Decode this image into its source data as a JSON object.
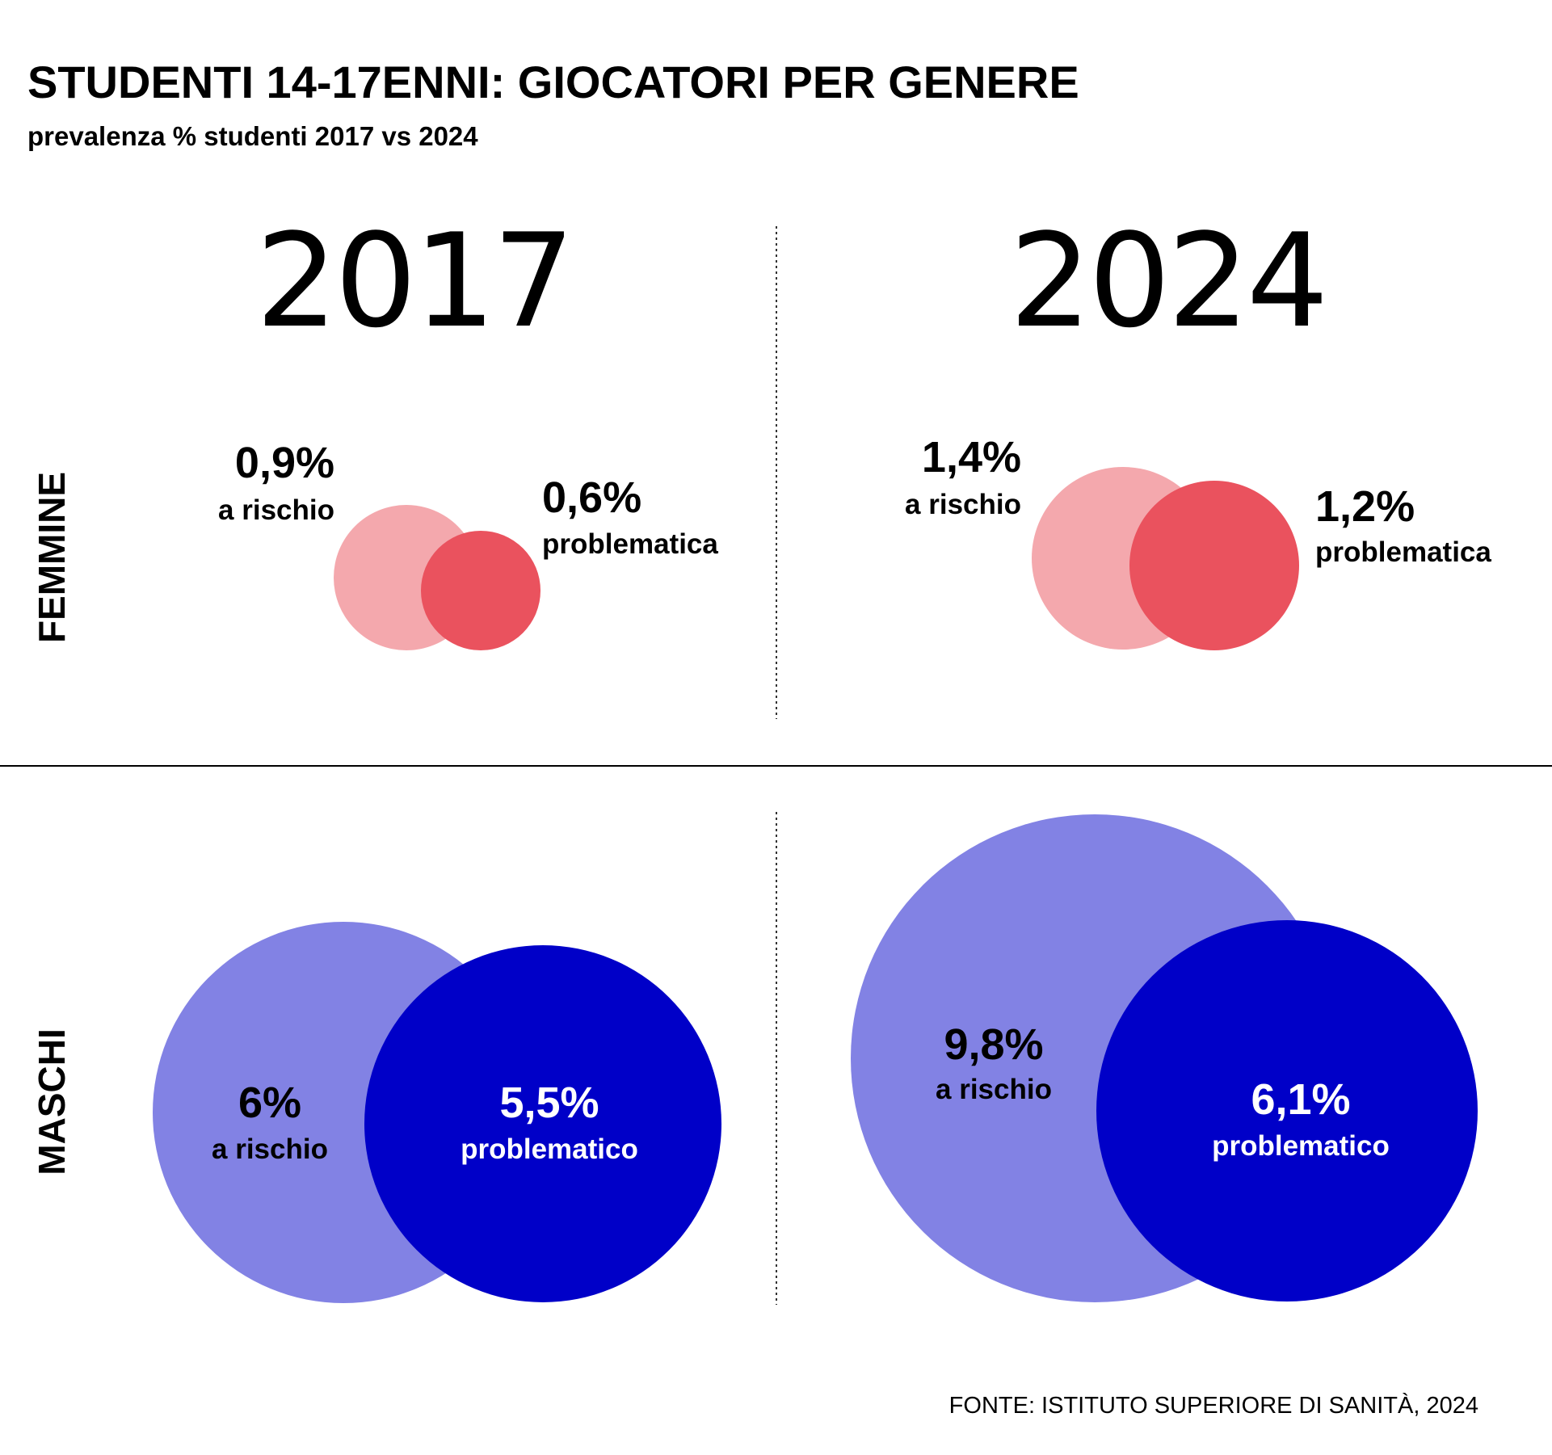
{
  "chart_data": {
    "type": "bubble",
    "title": "STUDENTI 14-17ENNI: GIOCATORI PER GENERE",
    "subtitle": "prevalenza % studenti 2017 vs 2024",
    "years": [
      "2017",
      "2024"
    ],
    "groups": [
      "FEMMINE",
      "MASCHI"
    ],
    "source": "FONTE: ISTITUTO SUPERIORE DI SANITÀ, 2024",
    "colors": {
      "femmine_rischio": "#f4a8ad",
      "femmine_problematica": "#ea525e",
      "maschi_rischio": "#8282e4",
      "maschi_problematico": "#0000c8"
    },
    "data": {
      "femmine_2017": {
        "rischio": {
          "value": 0.9,
          "value_label": "0,9%",
          "caption": "a rischio"
        },
        "problematica": {
          "value": 0.6,
          "value_label": "0,6%",
          "caption": "problematica"
        }
      },
      "femmine_2024": {
        "rischio": {
          "value": 1.4,
          "value_label": "1,4%",
          "caption": "a rischio"
        },
        "problematica": {
          "value": 1.2,
          "value_label": "1,2%",
          "caption": "problematica"
        }
      },
      "maschi_2017": {
        "rischio": {
          "value": 6,
          "value_label": "6%",
          "caption": "a rischio"
        },
        "problematico": {
          "value": 5.5,
          "value_label": "5,5%",
          "caption": "problematico"
        }
      },
      "maschi_2024": {
        "rischio": {
          "value": 9.8,
          "value_label": "9,8%",
          "caption": "a rischio"
        },
        "problematico": {
          "value": 6.1,
          "value_label": "6,1%",
          "caption": "problematico"
        }
      }
    }
  }
}
